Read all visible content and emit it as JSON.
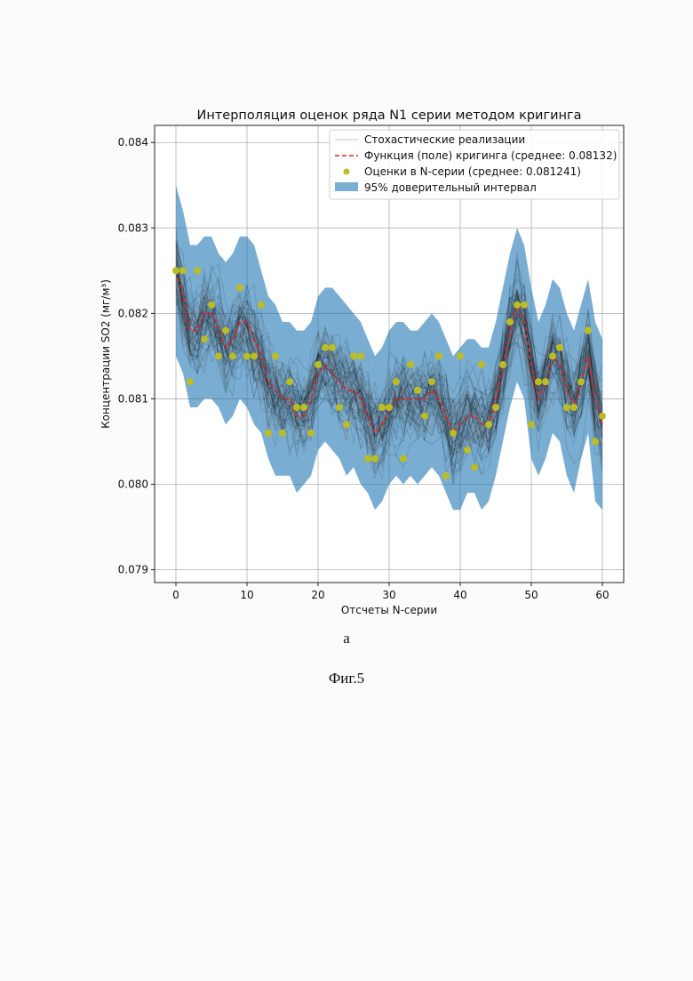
{
  "chart_data": {
    "type": "line",
    "title": "Интерполяция оценок ряда N1 серии методом кригинга",
    "xlabel": "Отсчеты N-серии",
    "ylabel": "Концентрации SO2 (мг/м³)",
    "xlim": [
      -3,
      63
    ],
    "ylim": [
      0.07885,
      0.0842
    ],
    "xticks": [
      "0",
      "10",
      "20",
      "30",
      "40",
      "50",
      "60"
    ],
    "yticks": [
      "0.079",
      "0.080",
      "0.081",
      "0.082",
      "0.083",
      "0.084"
    ],
    "grid": true,
    "legend_position": "top-right",
    "legend": {
      "realizations": "Стохастические реализации",
      "kriging": "Функция (поле) кригинга (среднее: 0.08132)",
      "estimates": "Оценки в N-серии (среднее: 0.081241)",
      "ci": "95% доверительный интервал"
    },
    "colors": {
      "realization": "#000000",
      "kriging": "#d62728",
      "estimates": "#bcbd22",
      "ci": "#1f77b4"
    },
    "x": [
      0,
      1,
      2,
      3,
      4,
      5,
      6,
      7,
      8,
      9,
      10,
      11,
      12,
      13,
      14,
      15,
      16,
      17,
      18,
      19,
      20,
      21,
      22,
      23,
      24,
      25,
      26,
      27,
      28,
      29,
      30,
      31,
      32,
      33,
      34,
      35,
      36,
      37,
      38,
      39,
      40,
      41,
      42,
      43,
      44,
      45,
      46,
      47,
      48,
      49,
      50,
      51,
      52,
      53,
      54,
      55,
      56,
      57,
      58,
      59,
      60
    ],
    "estimates": [
      0.0825,
      0.0825,
      0.0812,
      0.0825,
      0.0817,
      0.0821,
      0.0815,
      0.0818,
      0.0815,
      0.0823,
      0.0815,
      0.0815,
      0.0821,
      0.0806,
      0.0815,
      0.0806,
      0.0812,
      0.0809,
      0.0809,
      0.0806,
      0.0814,
      0.0816,
      0.0816,
      0.0809,
      0.0807,
      0.0815,
      0.0815,
      0.0803,
      0.0803,
      0.0809,
      0.0809,
      0.0812,
      0.0803,
      0.0814,
      0.0811,
      0.0808,
      0.0812,
      0.0815,
      0.0801,
      0.0806,
      0.0815,
      0.0804,
      0.0802,
      0.0814,
      0.0807,
      0.0809,
      0.0814,
      0.0819,
      0.0821,
      0.0821,
      0.0807,
      0.0812,
      0.0812,
      0.0815,
      0.0816,
      0.0809,
      0.0809,
      0.0812,
      0.0818,
      0.0805,
      0.0808
    ],
    "kriging": [
      0.0825,
      0.0822,
      0.0818,
      0.0818,
      0.082,
      0.082,
      0.0818,
      0.0816,
      0.0817,
      0.0819,
      0.0819,
      0.0817,
      0.0815,
      0.0812,
      0.0811,
      0.081,
      0.081,
      0.0808,
      0.0808,
      0.081,
      0.0813,
      0.0814,
      0.0813,
      0.0812,
      0.0811,
      0.0811,
      0.081,
      0.0808,
      0.0806,
      0.0807,
      0.0809,
      0.081,
      0.081,
      0.081,
      0.081,
      0.081,
      0.0811,
      0.081,
      0.0808,
      0.0806,
      0.0807,
      0.0808,
      0.0808,
      0.0807,
      0.0807,
      0.081,
      0.0814,
      0.0818,
      0.0821,
      0.0819,
      0.0814,
      0.081,
      0.0812,
      0.0815,
      0.0814,
      0.0811,
      0.0809,
      0.0812,
      0.0815,
      0.081,
      0.0807
    ],
    "ci_lower": [
      0.0815,
      0.0813,
      0.0809,
      0.0809,
      0.081,
      0.081,
      0.0809,
      0.0807,
      0.0808,
      0.081,
      0.0809,
      0.0807,
      0.0806,
      0.0803,
      0.0801,
      0.0801,
      0.0801,
      0.0799,
      0.08,
      0.0801,
      0.0804,
      0.0805,
      0.0804,
      0.0803,
      0.0801,
      0.0802,
      0.08,
      0.0799,
      0.0797,
      0.0798,
      0.08,
      0.0801,
      0.08,
      0.0801,
      0.08,
      0.0801,
      0.0802,
      0.0801,
      0.0799,
      0.0797,
      0.0797,
      0.0799,
      0.0799,
      0.0797,
      0.0798,
      0.0801,
      0.0805,
      0.0809,
      0.0812,
      0.081,
      0.0803,
      0.0801,
      0.0803,
      0.0806,
      0.0805,
      0.0801,
      0.0799,
      0.0803,
      0.0806,
      0.0798,
      0.0797
    ],
    "ci_upper": [
      0.0835,
      0.0832,
      0.0828,
      0.0828,
      0.0829,
      0.0829,
      0.0827,
      0.0826,
      0.0827,
      0.0829,
      0.0829,
      0.0828,
      0.0825,
      0.0822,
      0.0821,
      0.0819,
      0.0819,
      0.0818,
      0.0818,
      0.0819,
      0.0822,
      0.0823,
      0.0823,
      0.0822,
      0.0821,
      0.082,
      0.0819,
      0.0817,
      0.0815,
      0.0816,
      0.0818,
      0.0819,
      0.0819,
      0.0818,
      0.0818,
      0.0819,
      0.082,
      0.0819,
      0.0817,
      0.0815,
      0.0816,
      0.0817,
      0.0817,
      0.0816,
      0.0816,
      0.0819,
      0.0823,
      0.0827,
      0.083,
      0.0828,
      0.0823,
      0.0819,
      0.0821,
      0.0824,
      0.0823,
      0.082,
      0.0818,
      0.0821,
      0.0824,
      0.0819,
      0.0817
    ]
  },
  "captions": {
    "sub": "а",
    "figure": "Фиг.5"
  }
}
